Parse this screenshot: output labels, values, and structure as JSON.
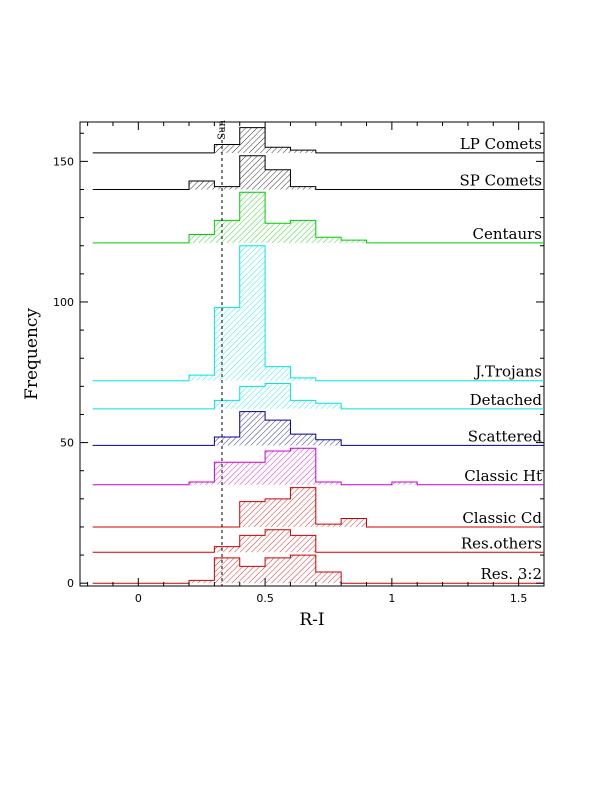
{
  "chart_data": {
    "type": "histogram",
    "title": "",
    "xlabel": "R-I",
    "ylabel": "Frequency",
    "xlim": [
      -0.23,
      1.6
    ],
    "ylim": [
      -1,
      164
    ],
    "x_ticks": [
      0,
      0.5,
      1,
      1.5
    ],
    "x_tick_labels": [
      "0",
      "0.5",
      "1",
      "1.5"
    ],
    "y_ticks": [
      0,
      50,
      100,
      150
    ],
    "y_tick_labels": [
      "0",
      "50",
      "100",
      "150"
    ],
    "bin_edges": [
      0.2,
      0.3,
      0.4,
      0.5,
      0.6,
      0.7,
      0.8,
      0.9,
      1.0,
      1.1
    ],
    "reference_line": {
      "label": "Sun",
      "x": 0.33
    },
    "series": [
      {
        "name": "LP Comets",
        "color": "#000000",
        "baseline": 153,
        "counts": [
          0,
          3,
          9,
          2,
          1,
          0,
          0,
          0,
          0
        ]
      },
      {
        "name": "SP Comets",
        "color": "#000000",
        "baseline": 140,
        "counts": [
          3,
          1,
          12,
          7,
          1,
          0,
          0,
          0,
          0
        ]
      },
      {
        "name": "Centaurs",
        "color": "#00cc00",
        "baseline": 121,
        "counts": [
          3,
          8,
          18,
          7,
          8,
          2,
          1,
          0,
          0
        ]
      },
      {
        "name": "J.Trojans",
        "color": "#00e5e5",
        "baseline": 72,
        "counts": [
          2,
          26,
          48,
          5,
          1,
          0,
          0,
          0,
          0
        ]
      },
      {
        "name": "Detached",
        "color": "#00e5e5",
        "baseline": 62,
        "counts": [
          0,
          3,
          8,
          9,
          3,
          2,
          0,
          0,
          0
        ]
      },
      {
        "name": "Scattered",
        "color": "#00008b",
        "baseline": 49,
        "counts": [
          0,
          3,
          12,
          9,
          4,
          2,
          0,
          0,
          0
        ]
      },
      {
        "name": "Classic Ht",
        "color": "#cc00cc",
        "baseline": 35,
        "counts": [
          1,
          8,
          8,
          12,
          13,
          1,
          0,
          0,
          1
        ]
      },
      {
        "name": "Classic Cd",
        "color": "#cc0000",
        "baseline": 20,
        "counts": [
          0,
          0,
          9,
          10,
          14,
          1,
          3,
          0,
          0
        ]
      },
      {
        "name": "Res.others",
        "color": "#cc0000",
        "baseline": 11,
        "counts": [
          0,
          2,
          6,
          8,
          6,
          0,
          0,
          0,
          0
        ]
      },
      {
        "name": "Res. 3:2",
        "color": "#cc0000",
        "baseline": 0,
        "counts": [
          1,
          9,
          6,
          9,
          10,
          4,
          0,
          0,
          0
        ]
      }
    ]
  }
}
